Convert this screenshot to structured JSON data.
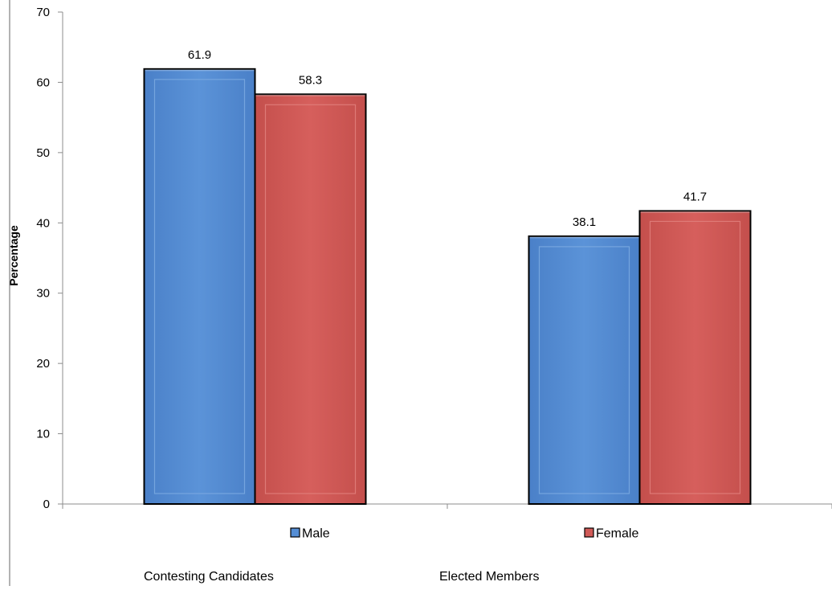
{
  "chart_data": {
    "type": "bar",
    "title": "",
    "xlabel": "",
    "ylabel": "Percentage",
    "ylim": [
      0,
      70
    ],
    "yticks": [
      0,
      10,
      20,
      30,
      40,
      50,
      60,
      70
    ],
    "categories": [
      "Contesting Candidates",
      "Elected Members"
    ],
    "series": [
      {
        "name": "Male",
        "values": [
          61.9,
          38.1
        ],
        "color": "#558ed5"
      },
      {
        "name": "Female",
        "values": [
          58.3,
          41.7
        ],
        "color": "#d05a57"
      }
    ],
    "data_labels": true,
    "grid": false,
    "legend_position": "bottom"
  }
}
